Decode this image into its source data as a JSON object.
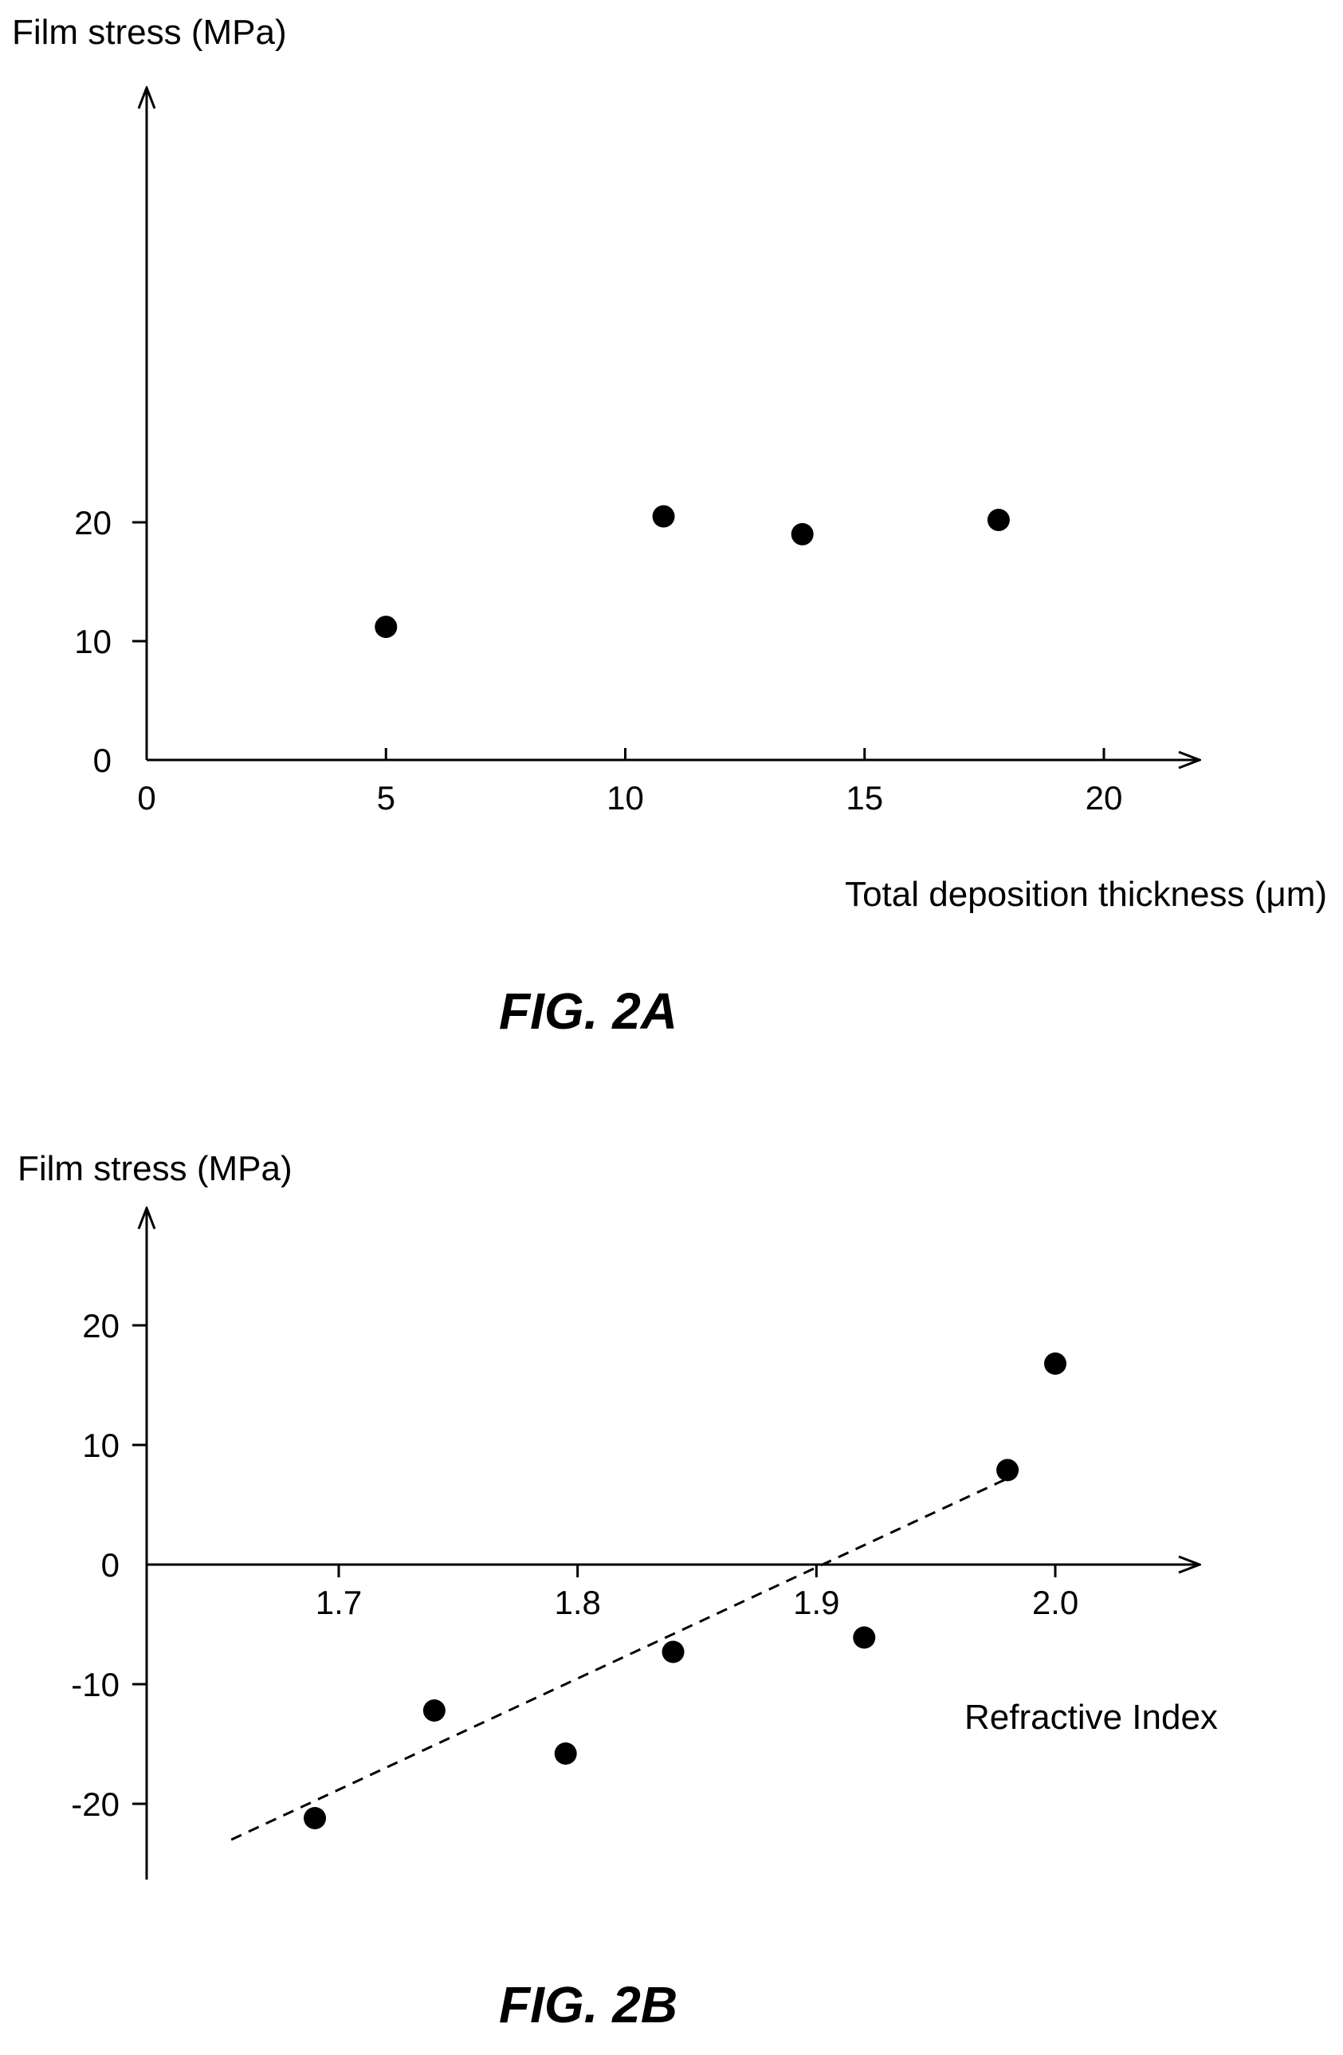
{
  "figures": [
    {
      "caption": "FIG. 2A"
    },
    {
      "caption": "FIG. 2B"
    }
  ],
  "chart_data": [
    {
      "type": "scatter",
      "ylabel": "Film stress (MPa)",
      "xlabel": "Total deposition thickness (μm)",
      "xlim": [
        0,
        22
      ],
      "ylim": [
        0,
        28
      ],
      "xticks": [
        "0",
        "5",
        "10",
        "15",
        "20"
      ],
      "yticks": [
        "0",
        "10",
        "20"
      ],
      "grid": false,
      "points": [
        {
          "x": 5.0,
          "y": 11.2
        },
        {
          "x": 10.8,
          "y": 20.5
        },
        {
          "x": 13.7,
          "y": 19.0
        },
        {
          "x": 17.8,
          "y": 20.2
        }
      ]
    },
    {
      "type": "scatter",
      "ylabel": "Film stress (MPa)",
      "xlabel": "Refractive Index",
      "xlim": [
        1.6,
        2.05
      ],
      "ylim": [
        -26,
        30
      ],
      "xticks": [
        "1.7",
        "1.8",
        "1.9",
        "2.0"
      ],
      "yticks": [
        "20",
        "10",
        "0",
        "-10",
        "-20"
      ],
      "grid": false,
      "points": [
        {
          "x": 1.69,
          "y": -21.2
        },
        {
          "x": 1.74,
          "y": -12.2
        },
        {
          "x": 1.795,
          "y": -15.8
        },
        {
          "x": 1.84,
          "y": -7.3
        },
        {
          "x": 1.92,
          "y": -6.1
        },
        {
          "x": 1.98,
          "y": 7.9
        },
        {
          "x": 2.0,
          "y": 16.8
        }
      ],
      "trendline": {
        "style": "dashed",
        "x": [
          1.655,
          1.98
        ],
        "y": [
          -23.0,
          7.2
        ]
      }
    }
  ]
}
